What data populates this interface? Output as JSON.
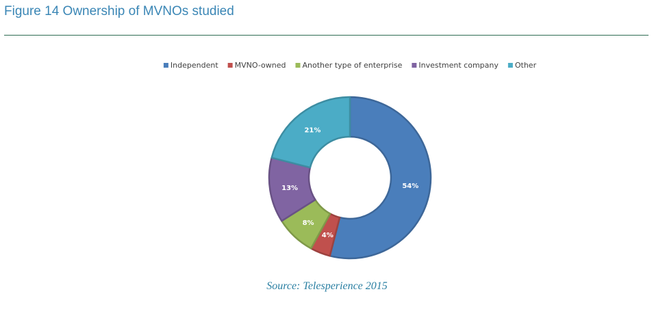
{
  "figure": {
    "title": "Figure 14 Ownership of MVNOs studied",
    "source": "Source: Telesperience 2015"
  },
  "chart_data": {
    "type": "pie",
    "donut": true,
    "title": "",
    "legend_position": "top",
    "categories": [
      "Independent",
      "MVNO-owned",
      "Another type of enterprise",
      "Investment company",
      "Other"
    ],
    "values": [
      54,
      4,
      8,
      13,
      21
    ],
    "labels": [
      "54%",
      "4%",
      "8%",
      "13%",
      "21%"
    ],
    "unit": "%",
    "colors": [
      "#4a7ebb",
      "#c0504d",
      "#9bbb59",
      "#8064a2",
      "#4bacc6"
    ]
  }
}
